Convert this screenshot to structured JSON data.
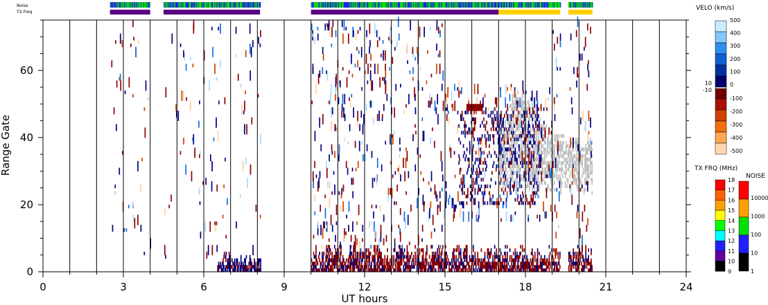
{
  "chart_data": {
    "type": "heatmap",
    "title": "",
    "xlabel": "UT hours",
    "ylabel": "Range Gate",
    "xlim": [
      0,
      24
    ],
    "ylim": [
      0,
      75
    ],
    "x_ticks": [
      "0",
      "3",
      "6",
      "9",
      "12",
      "15",
      "18",
      "21",
      "24"
    ],
    "y_ticks": [
      "0",
      "20",
      "40",
      "60"
    ],
    "vertical_grid_hours": [
      1,
      2,
      3,
      4,
      5,
      6,
      7,
      8,
      9,
      10,
      11,
      12,
      13,
      14,
      15,
      16,
      17,
      18,
      19,
      20,
      21,
      22,
      23
    ],
    "header_rows": {
      "noise_label": "Noise",
      "txfreq_label": "TX Freq",
      "noise_segments": [
        {
          "start": 2.5,
          "end": 4.0,
          "value": "blue/green"
        },
        {
          "start": 4.5,
          "end": 8.1,
          "value": "blue/green"
        },
        {
          "start": 10.0,
          "end": 19.3,
          "value": "green/blue"
        },
        {
          "start": 19.6,
          "end": 20.5,
          "value": "blue/green"
        }
      ],
      "txfreq_segments": [
        {
          "start": 2.5,
          "end": 4.0,
          "mhz": 10
        },
        {
          "start": 4.5,
          "end": 8.1,
          "mhz": 10
        },
        {
          "start": 10.0,
          "end": 17.0,
          "mhz": 10
        },
        {
          "start": 17.0,
          "end": 19.3,
          "mhz": 14
        },
        {
          "start": 19.6,
          "end": 20.5,
          "mhz": 14
        }
      ]
    },
    "velocity_scale": {
      "label": "VELO (km/s)",
      "positive_ticks": [
        "500",
        "400",
        "300",
        "200",
        "100",
        "0"
      ],
      "negative_ticks": [
        "-100",
        "-200",
        "-300",
        "-400",
        "-500"
      ],
      "near_zero_labels": [
        "10",
        "-10"
      ]
    },
    "txfreq_scale": {
      "label": "TX FRQ (MHz)",
      "ticks": [
        "18",
        "17",
        "16",
        "15",
        "14",
        "13",
        "12",
        "11",
        "10",
        "9"
      ]
    },
    "noise_scale": {
      "label": "NOISE",
      "ticks": [
        "10000",
        "1000",
        "100",
        "10",
        "1"
      ]
    },
    "regions": [
      {
        "kind": "near_range_negative",
        "x_start": 10.0,
        "x_end": 20.5,
        "gate_start": 0,
        "gate_end": 8
      },
      {
        "kind": "near_range_positive",
        "x_start": 6.5,
        "x_end": 8.1,
        "gate_start": 0,
        "gate_end": 5
      },
      {
        "kind": "ground_scatter",
        "x_start": 17.0,
        "x_end": 20.5,
        "gate_start": 23,
        "gate_end": 55
      },
      {
        "kind": "scatter_sparse",
        "x_start": 2.5,
        "x_end": 20.5,
        "gate_start": 5,
        "gate_end": 75
      }
    ],
    "colors": {
      "pos_high": "#a8d8ff",
      "pos_mid": "#1070e0",
      "pos_low": "#000080",
      "neg_low": "#8b0000",
      "neg_mid": "#d04000",
      "neg_high": "#ffcfa0",
      "ground_scatter": "#c0c0c0",
      "noise_green": "#00e000",
      "noise_blue": "#2020f0",
      "txfreq_purple": "#5a0080",
      "txfreq_yellow": "#ffd000"
    }
  }
}
